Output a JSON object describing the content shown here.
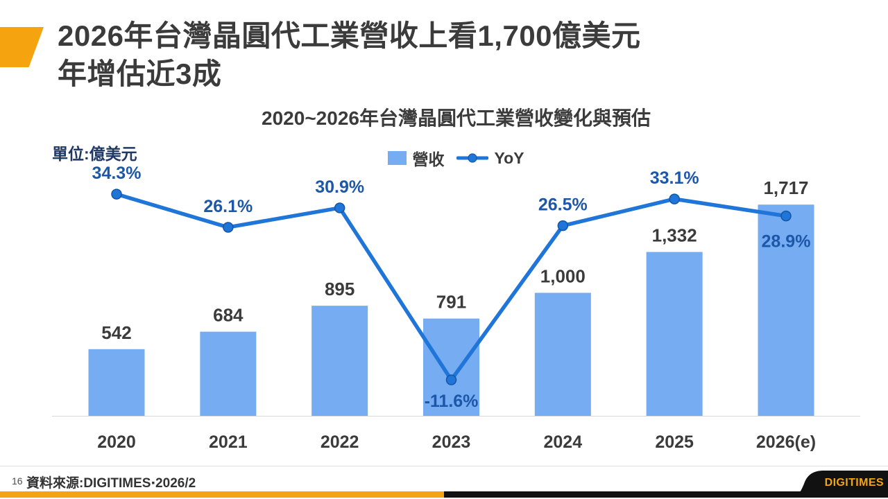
{
  "slide": {
    "title_line1": "2026年台灣晶圓代工業營收上看1,700億美元",
    "title_line2": "年增估近3成",
    "page_number": "16",
    "source_note": "資料來源:DIGITIMES‧2026/2",
    "logo_text": "DIGITIMES"
  },
  "chart_data": {
    "type": "bar",
    "subtype": "bar-line-combo",
    "title": "2020~2026年台灣晶圓代工業營收變化與預估",
    "unit_label": "單位:億美元",
    "categories": [
      "2020",
      "2021",
      "2022",
      "2023",
      "2024",
      "2025",
      "2026(e)"
    ],
    "series": [
      {
        "name": "營收",
        "type": "bar",
        "values": [
          542,
          684,
          895,
          791,
          1000,
          1332,
          1717
        ],
        "labels": [
          "542",
          "684",
          "895",
          "791",
          "1,000",
          "1,332",
          "1,717"
        ],
        "color": "#76ACF1"
      },
      {
        "name": "YoY",
        "type": "line",
        "values": [
          34.3,
          26.1,
          30.9,
          -11.6,
          26.5,
          33.1,
          28.9
        ],
        "labels": [
          "34.3%",
          "26.1%",
          "30.9%",
          "-11.6%",
          "26.5%",
          "33.1%",
          "28.9%"
        ],
        "color": "#1F75D8"
      }
    ],
    "legend_position": "top",
    "grid": false,
    "ylim_bars": [
      0,
      1900
    ],
    "colors": {
      "bar": "#76ACF1",
      "line": "#1F75D8",
      "marker_stroke": "#1456A4",
      "pct_label": "#1D57A9",
      "value_label": "#3B3B3B",
      "category_label": "#3B3B3B",
      "axis": "#D9D9D9"
    }
  }
}
